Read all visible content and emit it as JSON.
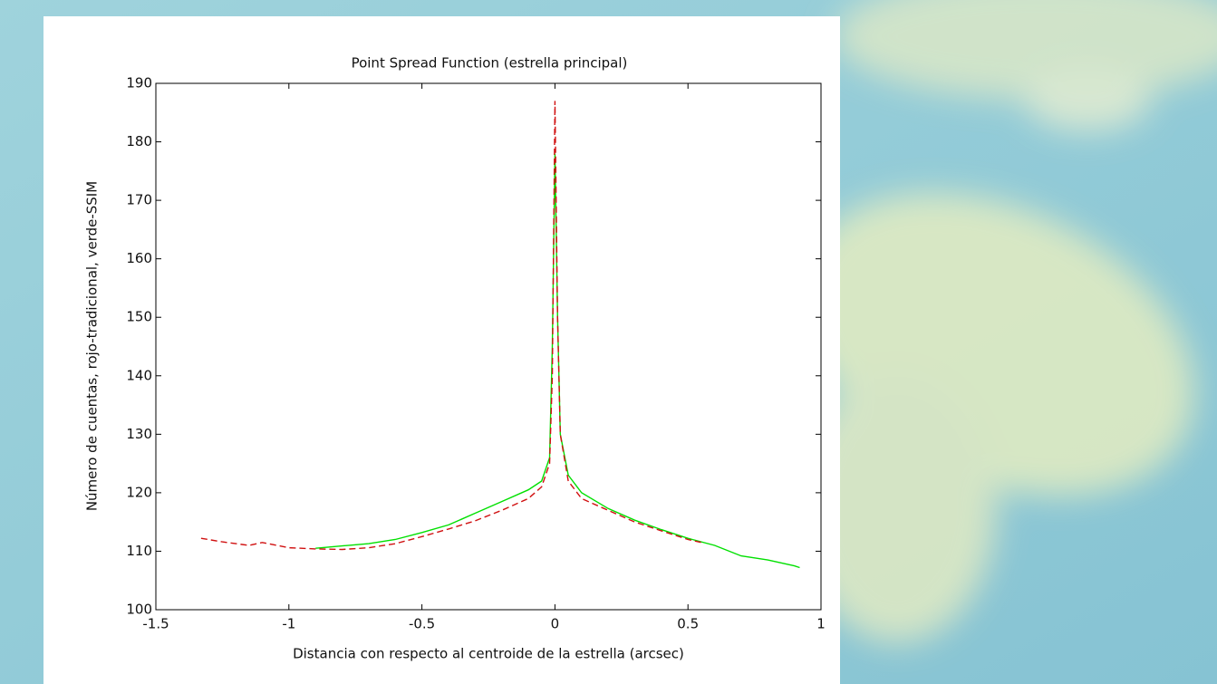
{
  "chart_data": {
    "type": "line",
    "title": "Point Spread Function (estrella principal)",
    "x_label": "Distancia con respecto al centroide de la estrella (arcsec)",
    "y_label": "Número de cuentas, rojo-tradicional, verde-SSIM",
    "xlim": [
      -1.5,
      1
    ],
    "xticks": [
      -1.5,
      -1,
      -0.5,
      0,
      0.5,
      1
    ],
    "ylim": [
      100,
      190
    ],
    "yticks": [
      100,
      110,
      120,
      130,
      140,
      150,
      160,
      170,
      180,
      190
    ],
    "series": [
      {
        "name": "verde-SSIM",
        "color": "#00e000",
        "dash": false,
        "x": [
          -0.9,
          -0.8,
          -0.7,
          -0.6,
          -0.5,
          -0.4,
          -0.3,
          -0.2,
          -0.1,
          -0.05,
          -0.02,
          -0.01,
          0,
          0.01,
          0.02,
          0.05,
          0.1,
          0.2,
          0.3,
          0.4,
          0.5,
          0.6,
          0.7,
          0.8,
          0.9,
          0.92
        ],
        "values": [
          110.5,
          110.9,
          111.3,
          112,
          113.2,
          114.5,
          116.5,
          118.5,
          120.5,
          122,
          126,
          145,
          178,
          150,
          130,
          123,
          120,
          117.3,
          115.3,
          113.7,
          112.2,
          111,
          109.2,
          108.5,
          107.5,
          107.2
        ]
      },
      {
        "name": "rojo-tradicional",
        "color": "#d01010",
        "dash": true,
        "x": [
          -1.33,
          -1.25,
          -1.15,
          -1.1,
          -1.0,
          -0.9,
          -0.8,
          -0.7,
          -0.6,
          -0.5,
          -0.4,
          -0.3,
          -0.2,
          -0.1,
          -0.05,
          -0.02,
          -0.01,
          0,
          0.01,
          0.02,
          0.05,
          0.1,
          0.2,
          0.3,
          0.4,
          0.5,
          0.55
        ],
        "values": [
          112.2,
          111.6,
          111.0,
          111.5,
          110.6,
          110.4,
          110.3,
          110.6,
          111.3,
          112.5,
          113.8,
          115.2,
          117,
          119,
          121,
          125,
          140,
          187,
          150,
          130,
          122,
          119,
          117,
          115,
          113.5,
          112,
          111.5
        ]
      }
    ]
  }
}
